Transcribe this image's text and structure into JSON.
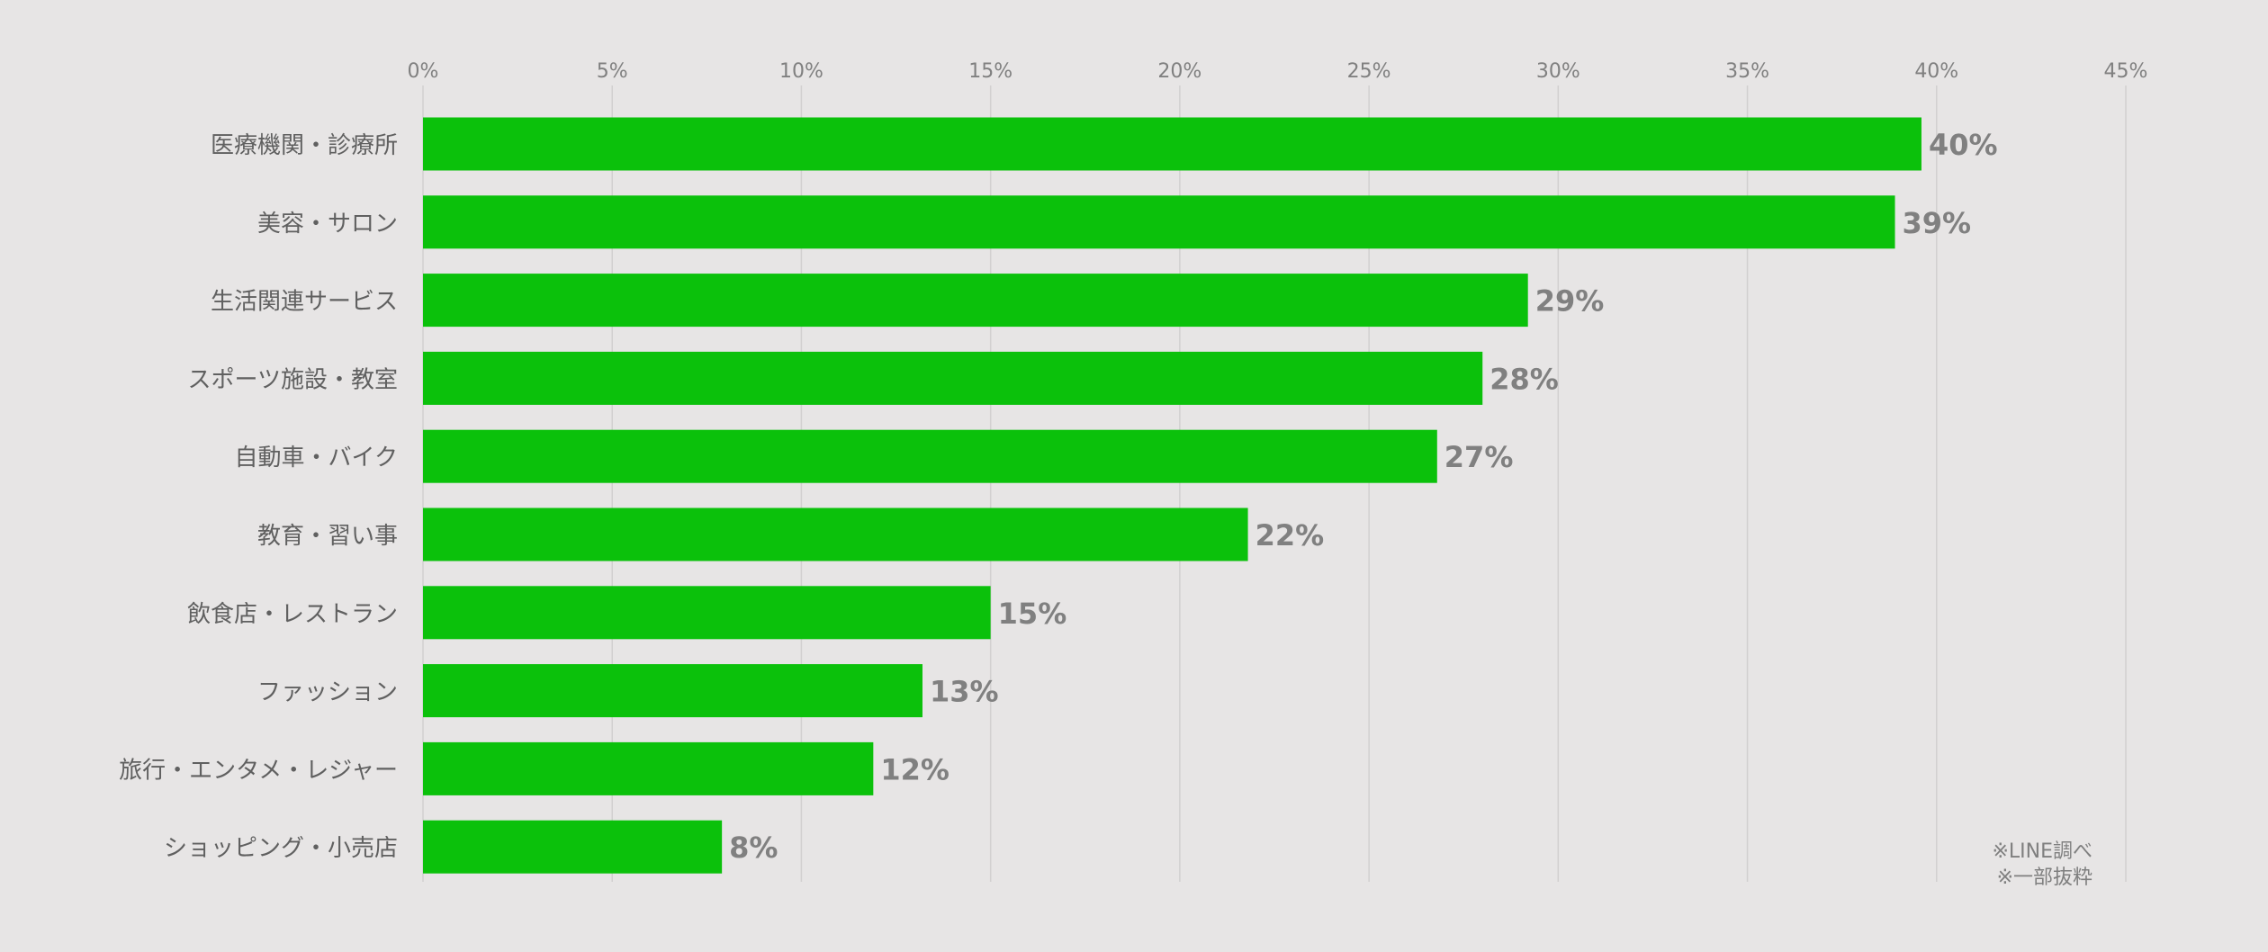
{
  "chart_data": {
    "type": "bar",
    "orientation": "horizontal",
    "categories": [
      "医療機関・診療所",
      "美容・サロン",
      "生活関連サービス",
      "スポーツ施設・教室",
      "自動車・バイク",
      "教育・習い事",
      "飲食店・レストラン",
      "ファッション",
      "旅行・エンタメ・レジャー",
      "ショッピング・小売店"
    ],
    "values": [
      39.6,
      38.9,
      29.2,
      28.0,
      26.8,
      21.8,
      15.0,
      13.2,
      11.9,
      7.9
    ],
    "value_labels": [
      "40%",
      "39%",
      "29%",
      "28%",
      "27%",
      "22%",
      "15%",
      "13%",
      "12%",
      "8%"
    ],
    "xlim": [
      0,
      45
    ],
    "xticks": [
      0,
      5,
      10,
      15,
      20,
      25,
      30,
      35,
      40,
      45
    ],
    "xtick_labels": [
      "0%",
      "5%",
      "10%",
      "15%",
      "20%",
      "25%",
      "30%",
      "35%",
      "40%",
      "45%"
    ],
    "x_axis_position": "top",
    "grid": true,
    "legend": "none",
    "title": "",
    "xlabel": "",
    "ylabel": ""
  },
  "colors": {
    "background": "#e7e5e5",
    "bar": "#0bc10b",
    "gridline": "#d2d0d0",
    "tick_text": "#808080",
    "category_text": "#606060",
    "value_text": "#808080"
  },
  "notes": {
    "source": "※LINE調べ",
    "excerpt": "※一部抜粋"
  }
}
